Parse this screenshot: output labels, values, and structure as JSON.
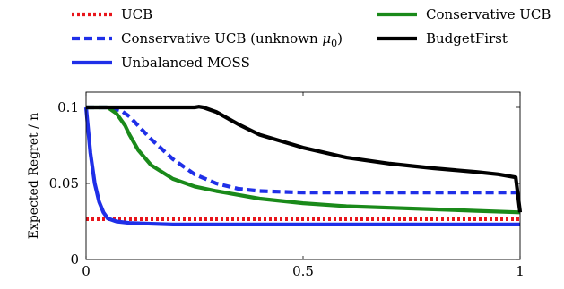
{
  "chart_data": {
    "type": "line",
    "title": "",
    "xlabel": "",
    "ylabel": "Expected Regret / n",
    "xlim": [
      0,
      1
    ],
    "ylim": [
      0,
      0.11
    ],
    "xticks": [
      0,
      0.5,
      1
    ],
    "xtick_labels": [
      "0",
      "0.5",
      "1"
    ],
    "yticks": [
      0,
      0.05,
      0.1
    ],
    "ytick_labels": [
      "0",
      "0.05",
      "0.1"
    ],
    "grid": false,
    "legend_position": "top",
    "series": [
      {
        "name": "UCB",
        "color": "#e8151b",
        "dash": "dotted",
        "x": [
          0,
          0.1,
          0.2,
          0.3,
          0.4,
          0.5,
          0.6,
          0.7,
          0.8,
          0.9,
          1.0
        ],
        "y": [
          0.0265,
          0.0265,
          0.0265,
          0.0265,
          0.0265,
          0.0265,
          0.0265,
          0.0265,
          0.0265,
          0.0265,
          0.0265
        ]
      },
      {
        "name": "Conservative UCB (unknown μ0)",
        "color": "#1f2fe8",
        "dash": "dashed",
        "x": [
          0,
          0.05,
          0.08,
          0.1,
          0.12,
          0.15,
          0.2,
          0.25,
          0.3,
          0.35,
          0.4,
          0.5,
          0.6,
          0.7,
          0.8,
          0.9,
          1.0
        ],
        "y": [
          0.1,
          0.1,
          0.098,
          0.094,
          0.088,
          0.079,
          0.066,
          0.056,
          0.05,
          0.0465,
          0.045,
          0.044,
          0.044,
          0.044,
          0.044,
          0.044,
          0.044
        ]
      },
      {
        "name": "Unbalanced MOSS",
        "color": "#1f2fe8",
        "dash": "solid",
        "x": [
          0,
          0.005,
          0.01,
          0.02,
          0.03,
          0.04,
          0.05,
          0.07,
          0.1,
          0.15,
          0.2,
          0.3,
          0.5,
          0.7,
          1.0
        ],
        "y": [
          0.1,
          0.085,
          0.07,
          0.05,
          0.038,
          0.031,
          0.027,
          0.025,
          0.024,
          0.0235,
          0.023,
          0.023,
          0.023,
          0.023,
          0.023
        ]
      },
      {
        "name": "Conservative UCB",
        "color": "#1a8a1a",
        "dash": "solid",
        "x": [
          0,
          0.05,
          0.07,
          0.09,
          0.1,
          0.12,
          0.15,
          0.2,
          0.25,
          0.3,
          0.4,
          0.5,
          0.6,
          0.7,
          0.8,
          0.9,
          1.0
        ],
        "y": [
          0.1,
          0.1,
          0.096,
          0.088,
          0.082,
          0.072,
          0.062,
          0.053,
          0.048,
          0.045,
          0.04,
          0.037,
          0.035,
          0.034,
          0.033,
          0.032,
          0.031
        ]
      },
      {
        "name": "BudgetFirst",
        "color": "#000000",
        "dash": "solid",
        "x": [
          0,
          0.25,
          0.26,
          0.27,
          0.3,
          0.35,
          0.4,
          0.5,
          0.6,
          0.7,
          0.8,
          0.9,
          0.95,
          0.99,
          1.0
        ],
        "y": [
          0.1,
          0.1,
          0.1005,
          0.1,
          0.097,
          0.089,
          0.082,
          0.0735,
          0.067,
          0.063,
          0.06,
          0.0575,
          0.056,
          0.054,
          0.031
        ]
      }
    ]
  }
}
